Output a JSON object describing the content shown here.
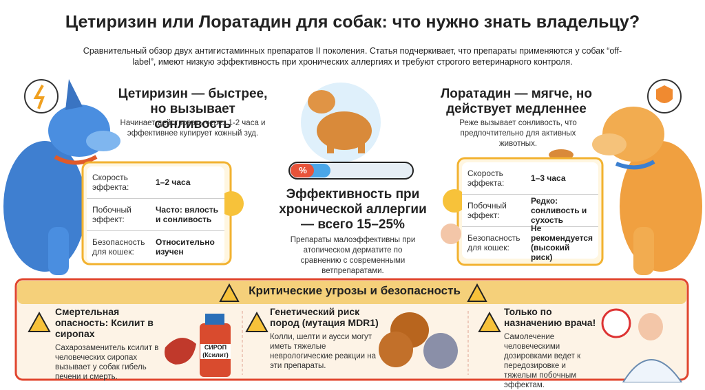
{
  "header": {
    "title": "Цетиризин или Лоратадин для собак: что нужно знать владельцу?",
    "subtitle": "Сравнительный обзор двух антигистаминных препаратов II поколения. Статья подчеркивает, что препараты применяются у собак “off-label”, имеют низкую эффективность при хронических аллергиях и требуют строгого ветеринарного контроля."
  },
  "left": {
    "heading": "Цетиризин — быстрее, но вызывает сонливость",
    "description": "Начинает действовать через 1-2 часа и эффективнее купирует кожный зуд.",
    "table": {
      "rows": [
        [
          "Скорость эффекта:",
          "1–2 часа"
        ],
        [
          "Побочный эффект:",
          "Часто: вялость и сонливость"
        ],
        [
          "Безопасность для кошек:",
          "Относительно изучен"
        ]
      ]
    }
  },
  "center": {
    "bar_label": "%",
    "heading": "Эффективность при хронической аллергии — всего 15–25%",
    "description": "Препараты малоэффективны при атопическом дерматите по сравнению с современными ветпрепаратами."
  },
  "right": {
    "heading": "Лоратадин — мягче, но действует медленнее",
    "description": "Реже вызывает сонливость, что предпочтительно для активных животных.",
    "table": {
      "rows": [
        [
          "Скорость эффекта:",
          "1–3 часа"
        ],
        [
          "Побочный эффект:",
          "Редко: сонливость и сухость"
        ],
        [
          "Безопасность для кошек:",
          "Не рекомендуется (высокий риск)"
        ]
      ]
    }
  },
  "warnings": {
    "title": "Критические угрозы и безопасность",
    "cards": [
      {
        "heading": "Смертельная опасность: Ксилит в сиропах",
        "text": "Сахарозаменитель ксилит в человеческих сиропах вызывает у собак гибель печени и смерть.",
        "label": "СИРОП (Ксилит)"
      },
      {
        "heading": "Генетический риск пород (мутация MDR1)",
        "text": "Колли, шелти и аусси могут иметь тяжелые неврологические реакции на эти препараты."
      },
      {
        "heading": "Только по назначению врача!",
        "text": "Самолечение человеческими дозировками ведет к передозировке и тяжелым побочным эффектам."
      }
    ]
  }
}
